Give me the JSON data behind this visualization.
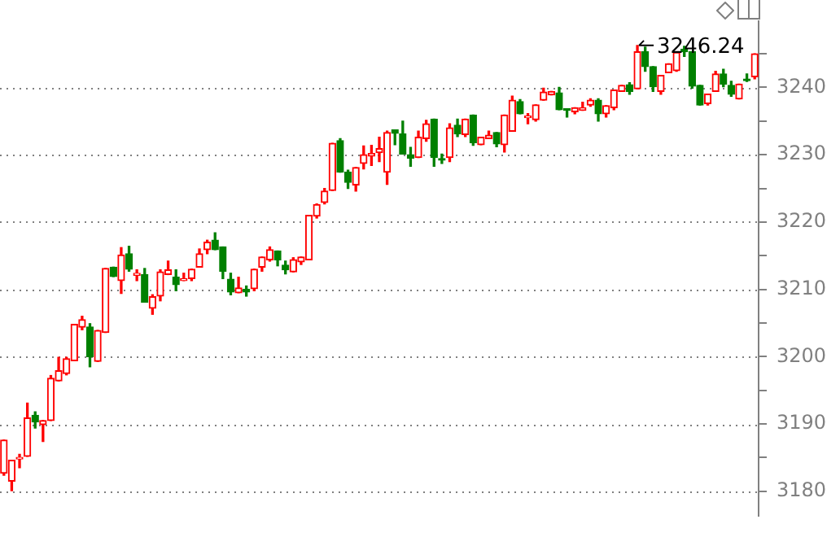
{
  "chart_data": {
    "type": "candlestick",
    "categories": [
      null,
      null,
      null,
      null,
      null,
      null,
      null,
      null,
      null,
      null,
      null,
      null,
      null,
      null,
      null,
      null,
      null,
      null,
      null,
      null,
      null,
      null,
      null,
      null,
      null,
      null,
      null,
      null,
      null,
      null,
      null,
      null,
      null,
      null,
      null,
      null,
      null,
      null,
      null,
      null,
      null,
      null,
      null,
      null,
      null,
      null,
      null,
      null,
      null,
      null,
      null,
      null,
      null,
      null,
      null,
      null,
      null,
      null,
      null,
      null,
      null,
      null,
      null,
      null,
      null,
      null,
      null,
      null,
      null,
      null,
      null,
      null,
      null,
      null,
      null,
      null,
      null,
      null,
      null,
      null,
      null,
      null,
      null,
      null,
      null,
      null,
      null,
      null,
      null,
      null,
      null,
      null,
      null,
      null,
      null,
      null,
      null
    ],
    "ohlc": [
      [
        3182.7,
        3187.6,
        3182.4,
        3187.6
      ],
      [
        3181.5,
        3184.6,
        3180.1,
        3184.6
      ],
      [
        3184.8,
        3185.5,
        3183.5,
        3184.9
      ],
      [
        3185.2,
        3193.1,
        3185.2,
        3190.9
      ],
      [
        3191.3,
        3191.8,
        3189.4,
        3190.3
      ],
      [
        3189.9,
        3190.5,
        3187.4,
        3190.5
      ],
      [
        3190.5,
        3197.2,
        3190.5,
        3196.8
      ],
      [
        3196.4,
        3199.9,
        3196.4,
        3197.9
      ],
      [
        3197.5,
        3199.9,
        3197.3,
        3199.7
      ],
      [
        3199.4,
        3204.8,
        3199.4,
        3204.8
      ],
      [
        3204.4,
        3206.0,
        3204.0,
        3205.5
      ],
      [
        3204.4,
        3204.9,
        3198.5,
        3200.0
      ],
      [
        3199.3,
        3203.9,
        3199.3,
        3203.9
      ],
      [
        3203.6,
        3213.1,
        3203.6,
        3213.1
      ],
      [
        3213.3,
        3213.3,
        3211.9,
        3211.9
      ],
      [
        3211.3,
        3216.2,
        3209.4,
        3215.1
      ],
      [
        3215.3,
        3216.4,
        3212.7,
        3213.0
      ],
      [
        3212.1,
        3212.9,
        3211.3,
        3212.4
      ],
      [
        3212.2,
        3213.1,
        3208.1,
        3208.1
      ],
      [
        3207.2,
        3209.2,
        3206.3,
        3208.9
      ],
      [
        3209.0,
        3212.9,
        3208.3,
        3212.6
      ],
      [
        3212.2,
        3214.2,
        3212.2,
        3212.9
      ],
      [
        3211.8,
        3212.9,
        3209.8,
        3210.7
      ],
      [
        3211.3,
        3212.4,
        3211.3,
        3211.6
      ],
      [
        3211.6,
        3213.0,
        3211.3,
        3213.0
      ],
      [
        3213.3,
        3216.0,
        3213.3,
        3215.3
      ],
      [
        3215.9,
        3217.3,
        3215.3,
        3217.0
      ],
      [
        3217.3,
        3218.4,
        3215.9,
        3215.9
      ],
      [
        3216.3,
        3216.3,
        3211.6,
        3212.7
      ],
      [
        3211.5,
        3212.4,
        3209.2,
        3209.6
      ],
      [
        3209.5,
        3211.8,
        3209.5,
        3210.2
      ],
      [
        3210.0,
        3210.5,
        3209.0,
        3209.6
      ],
      [
        3210.1,
        3213.0,
        3209.8,
        3213.0
      ],
      [
        3213.3,
        3214.8,
        3212.7,
        3214.8
      ],
      [
        3214.4,
        3216.3,
        3214.2,
        3215.9
      ],
      [
        3215.7,
        3215.7,
        3213.5,
        3214.4
      ],
      [
        3213.6,
        3214.2,
        3212.3,
        3212.9
      ],
      [
        3212.6,
        3214.7,
        3212.6,
        3214.4
      ],
      [
        3214.1,
        3214.8,
        3213.7,
        3214.8
      ],
      [
        3214.4,
        3221.0,
        3214.4,
        3221.0
      ],
      [
        3220.9,
        3222.7,
        3220.6,
        3222.6
      ],
      [
        3222.9,
        3225.0,
        3222.7,
        3224.6
      ],
      [
        3224.7,
        3231.7,
        3224.7,
        3231.7
      ],
      [
        3232.1,
        3232.4,
        3227.4,
        3227.4
      ],
      [
        3227.4,
        3227.7,
        3225.0,
        3225.9
      ],
      [
        3225.5,
        3228.1,
        3224.6,
        3228.1
      ],
      [
        3228.7,
        3231.3,
        3227.9,
        3230.0
      ],
      [
        3229.8,
        3231.4,
        3228.4,
        3230.2
      ],
      [
        3230.3,
        3232.6,
        3229.0,
        3230.9
      ],
      [
        3227.4,
        3233.5,
        3225.6,
        3233.3
      ],
      [
        3233.7,
        3233.7,
        3231.5,
        3233.2
      ],
      [
        3233.1,
        3235.0,
        3230.1,
        3230.1
      ],
      [
        3230.0,
        3231.1,
        3228.3,
        3229.5
      ],
      [
        3229.6,
        3233.5,
        3229.6,
        3232.6
      ],
      [
        3232.4,
        3235.1,
        3232.0,
        3234.6
      ],
      [
        3235.3,
        3235.3,
        3228.3,
        3229.6
      ],
      [
        3229.4,
        3230.1,
        3228.7,
        3229.2
      ],
      [
        3229.6,
        3234.6,
        3229.0,
        3234.0
      ],
      [
        3234.4,
        3235.3,
        3232.7,
        3233.1
      ],
      [
        3233.0,
        3235.3,
        3232.7,
        3235.3
      ],
      [
        3235.9,
        3235.9,
        3231.4,
        3231.8
      ],
      [
        3231.5,
        3232.6,
        3231.5,
        3232.6
      ],
      [
        3232.4,
        3233.5,
        3232.4,
        3232.9
      ],
      [
        3233.3,
        3233.3,
        3231.2,
        3231.6
      ],
      [
        3231.5,
        3235.9,
        3230.4,
        3235.9
      ],
      [
        3233.5,
        3238.7,
        3233.5,
        3238.1
      ],
      [
        3237.9,
        3238.2,
        3236.1,
        3236.1
      ],
      [
        3235.5,
        3236.1,
        3234.6,
        3235.7
      ],
      [
        3235.2,
        3237.4,
        3235.0,
        3237.4
      ],
      [
        3238.1,
        3239.9,
        3238.1,
        3239.3
      ],
      [
        3238.9,
        3239.4,
        3238.9,
        3239.4
      ],
      [
        3239.2,
        3240.0,
        3236.7,
        3236.7
      ],
      [
        3236.7,
        3236.7,
        3235.6,
        3236.6
      ],
      [
        3236.4,
        3237.0,
        3236.1,
        3237.0
      ],
      [
        3236.6,
        3237.8,
        3236.6,
        3237.0
      ],
      [
        3237.4,
        3238.3,
        3237.2,
        3238.1
      ],
      [
        3238.1,
        3238.3,
        3235.0,
        3236.1
      ],
      [
        3236.1,
        3237.3,
        3235.6,
        3237.3
      ],
      [
        3237.0,
        3239.6,
        3236.7,
        3239.6
      ],
      [
        3239.4,
        3240.3,
        3239.4,
        3240.3
      ],
      [
        3240.4,
        3240.7,
        3239.0,
        3239.4
      ],
      [
        3239.8,
        3246.24,
        3239.8,
        3245.3
      ],
      [
        3245.3,
        3246.0,
        3242.4,
        3243.1
      ],
      [
        3243.1,
        3243.1,
        3239.4,
        3240.1
      ],
      [
        3239.4,
        3241.8,
        3239.0,
        3241.8
      ],
      [
        3242.2,
        3243.5,
        3242.2,
        3243.5
      ],
      [
        3242.5,
        3245.3,
        3242.4,
        3245.2
      ],
      [
        3245.7,
        3246.1,
        3244.6,
        3245.3
      ],
      [
        3245.3,
        3245.3,
        3239.9,
        3240.2
      ],
      [
        3240.3,
        3240.3,
        3237.4,
        3237.4
      ],
      [
        3237.6,
        3239.0,
        3237.4,
        3239.0
      ],
      [
        3239.4,
        3242.4,
        3239.4,
        3242.0
      ],
      [
        3242.0,
        3242.7,
        3240.1,
        3240.5
      ],
      [
        3240.3,
        3240.9,
        3238.7,
        3239.0
      ],
      [
        3238.3,
        3240.5,
        3238.3,
        3240.5
      ],
      [
        3241.2,
        3242.0,
        3240.9,
        3241.0
      ],
      [
        3241.6,
        3245.0,
        3241.3,
        3245.0
      ]
    ],
    "colors": [
      "#ff0000",
      "#ff0000",
      "#ff0000",
      "#ff0000",
      "#008000",
      "#ff0000",
      "#ff0000",
      "#ff0000",
      "#ff0000",
      "#ff0000",
      "#ff0000",
      "#008000",
      "#ff0000",
      "#ff0000",
      "#008000",
      "#ff0000",
      "#008000",
      "#ff0000",
      "#008000",
      "#ff0000",
      "#ff0000",
      "#ff0000",
      "#008000",
      "#ff0000",
      "#ff0000",
      "#ff0000",
      "#ff0000",
      "#008000",
      "#008000",
      "#008000",
      "#ff0000",
      "#008000",
      "#ff0000",
      "#ff0000",
      "#ff0000",
      "#008000",
      "#008000",
      "#ff0000",
      "#ff0000",
      "#ff0000",
      "#ff0000",
      "#ff0000",
      "#ff0000",
      "#008000",
      "#008000",
      "#ff0000",
      "#ff0000",
      "#ff0000",
      "#ff0000",
      "#ff0000",
      "#008000",
      "#008000",
      "#008000",
      "#ff0000",
      "#ff0000",
      "#008000",
      "#008000",
      "#ff0000",
      "#008000",
      "#ff0000",
      "#008000",
      "#ff0000",
      "#ff0000",
      "#008000",
      "#ff0000",
      "#ff0000",
      "#008000",
      "#ff0000",
      "#ff0000",
      "#ff0000",
      "#ff0000",
      "#008000",
      "#008000",
      "#ff0000",
      "#ff0000",
      "#ff0000",
      "#008000",
      "#ff0000",
      "#ff0000",
      "#ff0000",
      "#008000",
      "#ff0000",
      "#008000",
      "#008000",
      "#ff0000",
      "#ff0000",
      "#ff0000",
      "#008000",
      "#008000",
      "#008000",
      "#ff0000",
      "#ff0000",
      "#008000",
      "#008000",
      "#ff0000",
      "#008000",
      "#ff0000"
    ],
    "ylim": [
      3176.4,
      3249.8
    ],
    "yticks": [
      3180,
      {
        "value": 3185,
        "label": null
      },
      3190,
      {
        "value": 3195,
        "label": null
      },
      3200,
      {
        "value": 3205,
        "label": null
      },
      3210,
      {
        "value": 3215,
        "label": null
      },
      3220,
      {
        "value": 3225,
        "label": null
      },
      3230,
      {
        "value": 3235,
        "label": null
      },
      3240,
      {
        "value": 3245,
        "label": null
      }
    ],
    "grid": "y",
    "tick_labels": "y",
    "annotations": [
      {
        "text": "3246.24",
        "y": 3246.24
      }
    ]
  }
}
